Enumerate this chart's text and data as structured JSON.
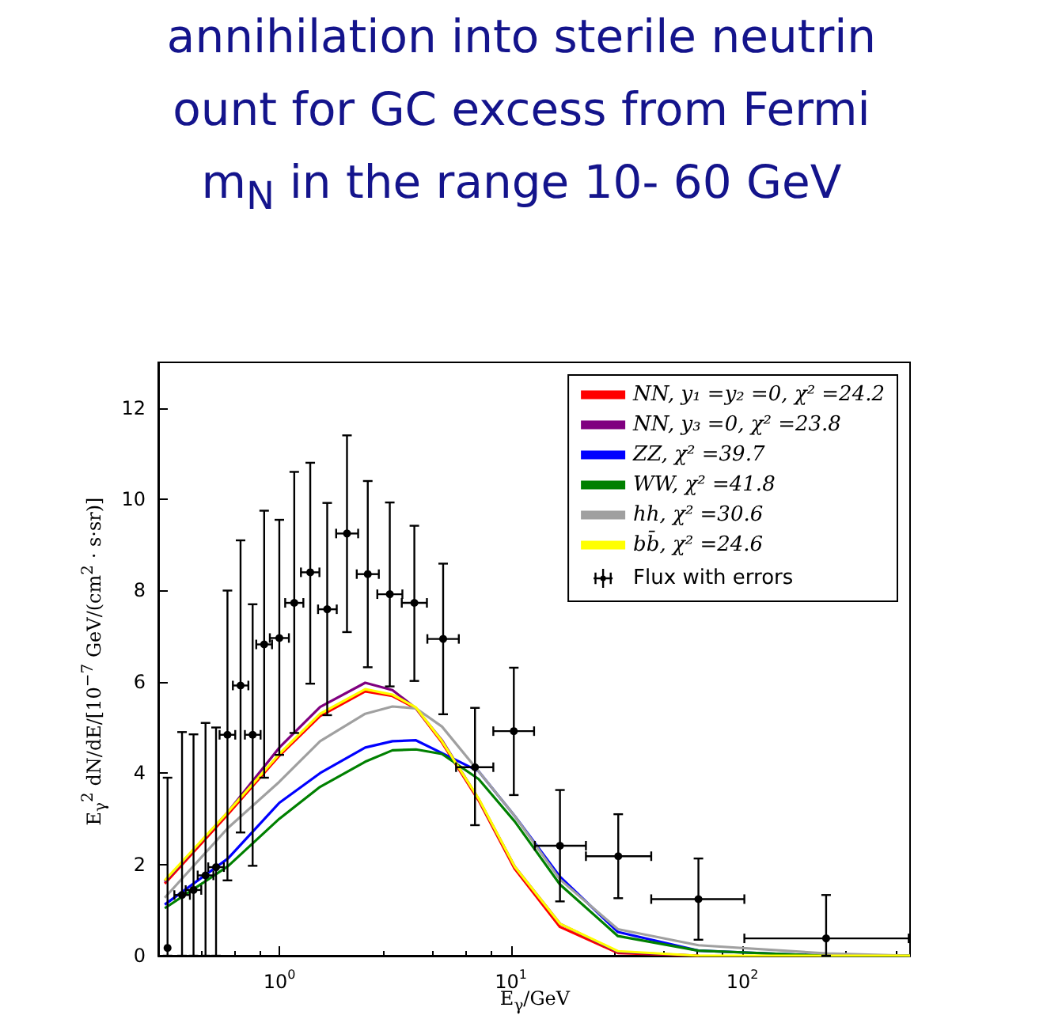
{
  "chart_data": {
    "type": "line",
    "title": "annihilation into sterile neutrin\nount for GC excess from Fermi\nm$_{N}$ in the range 10- 60 GeV",
    "xlabel": "E$_{γ}$/GeV",
    "ylabel": "E$_{γ}$$^{2}$ dN/dE/[10$^{−7}$ GeV/(cm$^{2}$ · s·sr)]",
    "log": "x",
    "xlim": [
      0.3,
      530
    ],
    "xticks": [
      {
        "value": 1,
        "label": "10$^{0}$"
      },
      {
        "value": 10,
        "label": "10$^{1}$"
      },
      {
        "value": 100,
        "label": "10$^{2}$"
      }
    ],
    "ylim": [
      0,
      13
    ],
    "yticks": [
      0,
      2,
      4,
      6,
      8,
      10,
      12
    ],
    "legend": "top right",
    "x": [
      0.32,
      0.6,
      1.0,
      1.5,
      2.35,
      3.08,
      3.89,
      5.04,
      7.26,
      10.4,
      16.3,
      29,
      64.6,
      230,
      530
    ],
    "series": [
      {
        "name": "NN, y₁ =y₂ =0, χ² =24.2",
        "color": "#ff0000",
        "values": [
          1.58,
          3.1,
          4.38,
          5.25,
          5.79,
          5.69,
          5.42,
          4.67,
          3.4,
          1.9,
          0.63,
          0.06,
          0,
          null,
          null
        ]
      },
      {
        "name": "NN, y₃ =0, χ² =23.8",
        "color": "#800080",
        "values": [
          1.62,
          3.15,
          4.56,
          5.45,
          5.98,
          5.82,
          5.42,
          4.72,
          3.43,
          1.95,
          0.7,
          0.08,
          0,
          null,
          null
        ]
      },
      {
        "name": "ZZ, χ² =39.7",
        "color": "#0000ff",
        "values": [
          1.12,
          2.13,
          3.35,
          4.0,
          4.56,
          4.7,
          4.72,
          4.44,
          4.04,
          3.06,
          1.73,
          0.52,
          0.11,
          0,
          0
        ]
      },
      {
        "name": "WW, χ² =41.8",
        "color": "#008000",
        "values": [
          1.04,
          1.96,
          3.0,
          3.7,
          4.25,
          4.5,
          4.52,
          4.42,
          3.87,
          2.94,
          1.56,
          0.43,
          0.11,
          0,
          0
        ]
      },
      {
        "name": "hh, χ² =30.6",
        "color": "#a0a0a0",
        "values": [
          1.27,
          2.8,
          3.81,
          4.7,
          5.3,
          5.46,
          5.42,
          5.02,
          4.04,
          3.06,
          1.67,
          0.58,
          0.23,
          0.05,
          0
        ]
      },
      {
        "name": "bb̄, χ² =24.6",
        "color": "#ffff00",
        "values": [
          1.65,
          3.15,
          4.42,
          5.3,
          5.84,
          5.72,
          5.44,
          4.7,
          3.44,
          1.95,
          0.7,
          0.1,
          0,
          0,
          0
        ]
      },
      {
        "name": "Flux with errors",
        "type": "scatter",
        "color": "#000000",
        "x": [
          0.329,
          0.38,
          0.426,
          0.48,
          0.533,
          0.597,
          0.68,
          0.767,
          0.86,
          1.0,
          1.16,
          1.36,
          1.61,
          1.96,
          2.41,
          3.0,
          3.83,
          5.1,
          7.0,
          10.3,
          16.3,
          29.1,
          64.6,
          230
        ],
        "values": [
          0.17,
          1.33,
          1.44,
          1.76,
          1.94,
          4.84,
          5.92,
          4.84,
          6.82,
          6.96,
          7.73,
          8.4,
          7.59,
          9.25,
          8.36,
          7.92,
          7.73,
          6.94,
          4.13,
          4.92,
          2.41,
          2.18,
          1.24,
          0.38
        ],
        "errors": [
          [
            0,
            3.9
          ],
          [
            0,
            4.9
          ],
          [
            0,
            4.85
          ],
          [
            0,
            5.1
          ],
          [
            0,
            5.0
          ],
          [
            1.65,
            8.0
          ],
          [
            2.7,
            9.1
          ],
          [
            1.97,
            7.7
          ],
          [
            3.9,
            9.75
          ],
          [
            4.4,
            9.55
          ],
          [
            4.88,
            10.6
          ],
          [
            5.96,
            10.8
          ],
          [
            5.27,
            9.92
          ],
          [
            7.09,
            11.4
          ],
          [
            6.32,
            10.4
          ],
          [
            5.9,
            9.93
          ],
          [
            6.02,
            9.42
          ],
          [
            5.29,
            8.59
          ],
          [
            2.86,
            5.43
          ],
          [
            3.52,
            6.31
          ],
          [
            1.19,
            3.63
          ],
          [
            1.26,
            3.1
          ],
          [
            0.35,
            2.13
          ],
          [
            0,
            1.33
          ]
        ],
        "xerrors": [
          null,
          [
            0.352,
            0.411
          ],
          [
            0.394,
            0.46
          ],
          [
            0.444,
            0.519
          ],
          [
            0.493,
            0.576
          ],
          [
            0.552,
            0.645
          ],
          [
            0.63,
            0.735
          ],
          [
            0.71,
            0.83
          ],
          [
            0.795,
            0.93
          ],
          [
            0.91,
            1.1
          ],
          [
            1.06,
            1.27
          ],
          [
            1.24,
            1.49
          ],
          [
            1.47,
            1.77
          ],
          [
            1.76,
            2.19
          ],
          [
            2.16,
            2.69
          ],
          [
            2.65,
            3.4
          ],
          [
            3.38,
            4.34
          ],
          [
            4.36,
            5.96
          ],
          [
            5.8,
            8.4
          ],
          [
            8.4,
            12.6
          ],
          [
            12.7,
            21.1
          ],
          [
            21.1,
            40.4
          ],
          [
            40.4,
            102
          ],
          [
            102,
            523
          ]
        ]
      }
    ]
  }
}
